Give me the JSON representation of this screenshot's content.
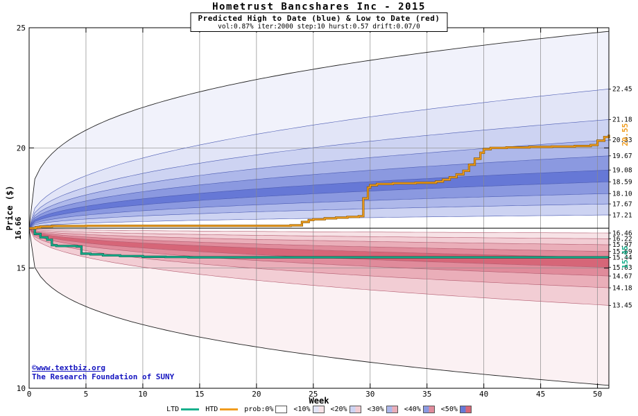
{
  "watermark": {
    "line1": "©www.textbiz.org",
    "line2": "The Research Foundation of SUNY",
    "color": "#1515c0"
  },
  "chart_data": {
    "type": "area",
    "title": "Hometrust Bancshares Inc - 2015",
    "subtitle": "Predicted High to Date (blue) &  Low to Date (red)",
    "params_line": "vol:0.87% iter:2000 step:10 hurst:0.57 drift:0.07/0",
    "params": {
      "vol": "0.87%",
      "iter": "2000",
      "step": "10",
      "hurst": "0.57",
      "drift": "0.07/0"
    },
    "xlabel": "Week",
    "ylabel": "Price ($)",
    "x_axis": {
      "min": 0,
      "max": 51,
      "ticks": [
        0,
        5,
        10,
        15,
        20,
        25,
        30,
        35,
        40,
        45,
        50
      ]
    },
    "y_axis": {
      "min": 10,
      "max": 25,
      "ticks": [
        10,
        15,
        20,
        25
      ]
    },
    "start_price": 16.66,
    "left_start_label": "16.66",
    "boundary_exponent": 0.42,
    "envelope": {
      "top_end": 24.85,
      "bottom_end": 10.12,
      "exponent": 0.3,
      "stroke": "#222222"
    },
    "high_bands": {
      "boundaries": [
        22.45,
        21.18,
        20.33,
        19.67,
        19.08,
        18.59,
        18.1,
        17.67,
        17.21
      ],
      "band_shades": [
        "0",
        "10",
        "20",
        "30",
        "40",
        "50",
        "40",
        "30",
        "20"
      ],
      "palette": {
        "0": "#f1f2fb",
        "10": "#e2e5f7",
        "20": "#cdd3f2",
        "30": "#aeb8ea",
        "40": "#8b99e0",
        "50": "#6678d6"
      },
      "line_color": "#4a5ab2"
    },
    "low_bands": {
      "boundaries": [
        16.46,
        16.22,
        15.97,
        15.69,
        15.44,
        15.03,
        14.67,
        14.18,
        13.45
      ],
      "band_shades": [
        "10",
        "20",
        "30",
        "40",
        "50",
        "40",
        "30",
        "20",
        "0"
      ],
      "palette": {
        "0": "#fbf1f3",
        "10": "#f7e2e6",
        "20": "#f2cdd4",
        "30": "#eaaeb9",
        "40": "#e08b9b",
        "50": "#d66678"
      },
      "line_color": "#b25a6e"
    },
    "center_line": {
      "value": 16.66,
      "color": "#000000"
    },
    "htd": {
      "label": "HTD",
      "color": "#f09c1e",
      "edge": "#8a5a00",
      "final_label": "20.55",
      "points": [
        [
          0,
          16.66
        ],
        [
          0.6,
          16.7
        ],
        [
          1,
          16.73
        ],
        [
          2,
          16.75
        ],
        [
          5,
          16.76
        ],
        [
          10,
          16.76
        ],
        [
          23,
          16.78
        ],
        [
          24,
          16.92
        ],
        [
          24.6,
          17.0
        ],
        [
          25,
          17.03
        ],
        [
          26,
          17.07
        ],
        [
          27,
          17.1
        ],
        [
          28,
          17.13
        ],
        [
          29,
          17.16
        ],
        [
          29.4,
          17.9
        ],
        [
          29.8,
          18.35
        ],
        [
          30,
          18.45
        ],
        [
          30.6,
          18.5
        ],
        [
          32,
          18.53
        ],
        [
          34,
          18.55
        ],
        [
          35.8,
          18.6
        ],
        [
          36.4,
          18.68
        ],
        [
          37,
          18.78
        ],
        [
          37.6,
          18.9
        ],
        [
          38.2,
          19.05
        ],
        [
          38.7,
          19.3
        ],
        [
          39.2,
          19.55
        ],
        [
          39.7,
          19.8
        ],
        [
          40,
          19.95
        ],
        [
          40.6,
          20.0
        ],
        [
          42,
          20.02
        ],
        [
          44,
          20.04
        ],
        [
          46,
          20.06
        ],
        [
          48,
          20.08
        ],
        [
          49.4,
          20.12
        ],
        [
          50,
          20.3
        ],
        [
          50.6,
          20.45
        ],
        [
          51,
          20.55
        ]
      ]
    },
    "ltd": {
      "label": "LTD",
      "color": "#18b08c",
      "edge": "#00614c",
      "final_label": "15.45",
      "points": [
        [
          0,
          16.66
        ],
        [
          0.5,
          16.42
        ],
        [
          1,
          16.28
        ],
        [
          1.6,
          16.18
        ],
        [
          2,
          15.95
        ],
        [
          2.4,
          15.92
        ],
        [
          4.2,
          15.9
        ],
        [
          4.6,
          15.6
        ],
        [
          5.4,
          15.57
        ],
        [
          6.5,
          15.53
        ],
        [
          8,
          15.5
        ],
        [
          10,
          15.47
        ],
        [
          12,
          15.46
        ],
        [
          14,
          15.45
        ],
        [
          51,
          15.45
        ]
      ]
    },
    "right_axis_labels": [
      "22.45",
      "21.18",
      "20.33",
      "19.67",
      "19.08",
      "18.59",
      "18.10",
      "17.67",
      "17.21",
      "16.46",
      "16.22",
      "15.97",
      "15.69",
      "15.44",
      "15.03",
      "14.67",
      "14.18",
      "13.45"
    ]
  },
  "legend": {
    "items": [
      {
        "label": "LTD",
        "type": "line",
        "color": "#18b08c"
      },
      {
        "label": "HTD",
        "type": "line",
        "color": "#f09c1e"
      },
      {
        "label": "prob:0%",
        "type": "box",
        "blue": "#ffffff",
        "red": "#ffffff"
      },
      {
        "label": "<10%",
        "type": "box",
        "blue": "#e2e5f7",
        "red": "#f7e2e6"
      },
      {
        "label": "<20%",
        "type": "box",
        "blue": "#cdd3f2",
        "red": "#f2cdd4"
      },
      {
        "label": "<30%",
        "type": "box",
        "blue": "#aeb8ea",
        "red": "#eaaeb9"
      },
      {
        "label": "<40%",
        "type": "box",
        "blue": "#8b99e0",
        "red": "#e08b9b"
      },
      {
        "label": "<50%",
        "type": "box",
        "blue": "#6678d6",
        "red": "#d66678"
      }
    ]
  }
}
